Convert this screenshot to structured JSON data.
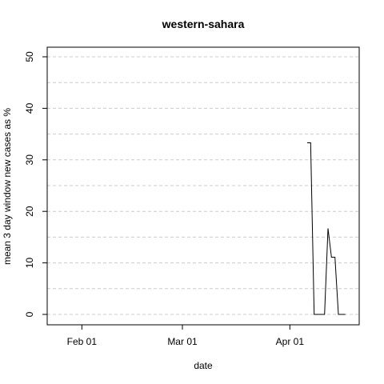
{
  "chart_data": {
    "type": "line",
    "title": "western-sahara",
    "xlabel": "date",
    "ylabel": "mean  3  day window new cases as %",
    "x_ticks": [
      "Feb 01",
      "Mar 01",
      "Apr 01"
    ],
    "y_ticks": [
      0,
      10,
      20,
      30,
      40,
      50
    ],
    "xlim": [
      "2020-01-22",
      "2020-04-21"
    ],
    "ylim": [
      0,
      50
    ],
    "grid": true,
    "series": [
      {
        "values": [
          {
            "x": "2020-01-22",
            "y": 50
          },
          {
            "x": "2020-01-22",
            "y": 0
          },
          {
            "x": "2020-04-06",
            "y": 33.3
          },
          {
            "x": "2020-04-07",
            "y": 33.3
          },
          {
            "x": "2020-04-08",
            "y": 0
          },
          {
            "x": "2020-04-09",
            "y": 0
          },
          {
            "x": "2020-04-10",
            "y": 0
          },
          {
            "x": "2020-04-11",
            "y": 0
          },
          {
            "x": "2020-04-12",
            "y": 16.7
          },
          {
            "x": "2020-04-13",
            "y": 11.1
          },
          {
            "x": "2020-04-14",
            "y": 11.1
          },
          {
            "x": "2020-04-15",
            "y": 0
          },
          {
            "x": "2020-04-16",
            "y": 0
          },
          {
            "x": "2020-04-17",
            "y": 0
          }
        ]
      }
    ]
  }
}
